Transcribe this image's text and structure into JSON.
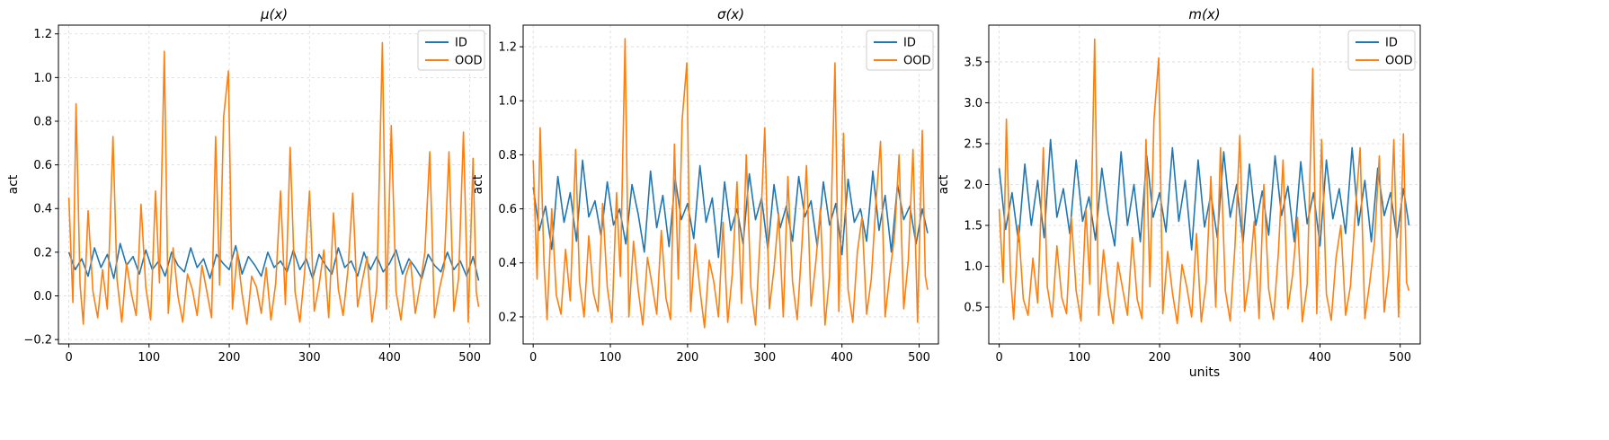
{
  "colors": {
    "ID": "#1f77b4",
    "OOD": "#ff7f0e",
    "grid": "#d9d9d9"
  },
  "chart_data": [
    {
      "type": "line",
      "title": "μ(x)",
      "xlabel": "",
      "ylabel": "act",
      "xlim": [
        -13,
        525
      ],
      "ylim": [
        -0.22,
        1.24
      ],
      "xticks": [
        0,
        100,
        200,
        300,
        400,
        500
      ],
      "xtick_labels": [
        "0",
        "100",
        "200",
        "300",
        "400",
        "500"
      ],
      "yticks": [
        -0.2,
        0.0,
        0.2,
        0.4,
        0.6,
        0.8,
        1.0,
        1.2
      ],
      "ytick_labels": [
        "−0.2",
        "0.0",
        "0.2",
        "0.4",
        "0.6",
        "0.8",
        "1.0",
        "1.2"
      ],
      "grid": true,
      "legend_position": "top-right",
      "series": [
        {
          "name": "ID",
          "color": "#1f77b4",
          "x": [
            0,
            8,
            16,
            24,
            32,
            40,
            48,
            56,
            64,
            72,
            80,
            88,
            96,
            104,
            112,
            120,
            128,
            136,
            144,
            152,
            160,
            168,
            176,
            184,
            192,
            200,
            208,
            216,
            224,
            232,
            240,
            248,
            256,
            264,
            272,
            280,
            288,
            296,
            304,
            312,
            320,
            328,
            336,
            344,
            352,
            360,
            368,
            376,
            384,
            392,
            400,
            408,
            416,
            424,
            432,
            440,
            448,
            456,
            464,
            472,
            480,
            488,
            496,
            504,
            511
          ],
          "y": [
            0.2,
            0.12,
            0.17,
            0.09,
            0.22,
            0.13,
            0.19,
            0.08,
            0.24,
            0.14,
            0.18,
            0.1,
            0.21,
            0.12,
            0.16,
            0.09,
            0.2,
            0.14,
            0.11,
            0.22,
            0.13,
            0.17,
            0.08,
            0.19,
            0.15,
            0.12,
            0.23,
            0.1,
            0.18,
            0.14,
            0.09,
            0.2,
            0.13,
            0.16,
            0.11,
            0.21,
            0.12,
            0.17,
            0.08,
            0.19,
            0.14,
            0.1,
            0.22,
            0.13,
            0.16,
            0.09,
            0.2,
            0.12,
            0.18,
            0.11,
            0.15,
            0.21,
            0.1,
            0.17,
            0.13,
            0.08,
            0.19,
            0.14,
            0.11,
            0.2,
            0.12,
            0.16,
            0.09,
            0.18,
            0.07
          ]
        },
        {
          "name": "OOD",
          "color": "#ff7f0e",
          "x": [
            0,
            5,
            9,
            14,
            18,
            24,
            30,
            36,
            42,
            48,
            55,
            60,
            66,
            72,
            78,
            84,
            90,
            96,
            102,
            108,
            113,
            119,
            124,
            130,
            136,
            142,
            148,
            154,
            160,
            166,
            172,
            178,
            183,
            188,
            193,
            199,
            204,
            210,
            216,
            222,
            228,
            234,
            240,
            246,
            252,
            258,
            264,
            270,
            276,
            282,
            288,
            294,
            300,
            306,
            312,
            318,
            324,
            330,
            336,
            342,
            348,
            354,
            360,
            366,
            372,
            378,
            384,
            391,
            396,
            402,
            408,
            414,
            420,
            426,
            432,
            438,
            444,
            450,
            456,
            462,
            468,
            474,
            480,
            486,
            492,
            498,
            504,
            508,
            511
          ],
          "y": [
            0.45,
            -0.03,
            0.88,
            0.05,
            -0.13,
            0.39,
            0.02,
            -0.1,
            0.12,
            -0.06,
            0.73,
            0.08,
            -0.12,
            0.15,
            0.01,
            -0.09,
            0.42,
            0.04,
            -0.11,
            0.48,
            0.06,
            1.12,
            -0.08,
            0.22,
            0.0,
            -0.12,
            0.1,
            0.03,
            -0.09,
            0.14,
            0.02,
            -0.1,
            0.73,
            0.05,
            0.82,
            1.03,
            -0.06,
            0.2,
            0.01,
            -0.13,
            0.09,
            0.04,
            -0.08,
            0.13,
            -0.11,
            0.06,
            0.48,
            -0.04,
            0.68,
            0.02,
            -0.12,
            0.11,
            0.48,
            -0.07,
            0.05,
            0.21,
            -0.1,
            0.38,
            0.03,
            -0.09,
            0.12,
            0.47,
            -0.05,
            0.07,
            0.18,
            -0.12,
            0.04,
            1.16,
            -0.06,
            0.78,
            0.02,
            -0.11,
            0.09,
            0.16,
            -0.08,
            0.05,
            0.2,
            0.66,
            -0.1,
            0.03,
            0.13,
            0.66,
            -0.07,
            0.08,
            0.75,
            -0.12,
            0.63,
            0.02,
            -0.05
          ]
        }
      ]
    },
    {
      "type": "line",
      "title": "σ(x)",
      "xlabel": "",
      "ylabel": "act",
      "xlim": [
        -13,
        525
      ],
      "ylim": [
        0.1,
        1.28
      ],
      "xticks": [
        0,
        100,
        200,
        300,
        400,
        500
      ],
      "xtick_labels": [
        "0",
        "100",
        "200",
        "300",
        "400",
        "500"
      ],
      "yticks": [
        0.2,
        0.4,
        0.6,
        0.8,
        1.0,
        1.2
      ],
      "ytick_labels": [
        "0.2",
        "0.4",
        "0.6",
        "0.8",
        "1.0",
        "1.2"
      ],
      "grid": true,
      "legend_position": "top-right",
      "series": [
        {
          "name": "ID",
          "color": "#1f77b4",
          "x": [
            0,
            8,
            16,
            24,
            32,
            40,
            48,
            56,
            64,
            72,
            80,
            88,
            96,
            104,
            112,
            120,
            128,
            136,
            144,
            152,
            160,
            168,
            176,
            184,
            192,
            200,
            208,
            216,
            224,
            232,
            240,
            248,
            256,
            264,
            272,
            280,
            288,
            296,
            304,
            312,
            320,
            328,
            336,
            344,
            352,
            360,
            368,
            376,
            384,
            392,
            400,
            408,
            416,
            424,
            432,
            440,
            448,
            456,
            464,
            472,
            480,
            488,
            496,
            504,
            511
          ],
          "y": [
            0.68,
            0.52,
            0.61,
            0.45,
            0.72,
            0.55,
            0.66,
            0.48,
            0.78,
            0.57,
            0.63,
            0.5,
            0.7,
            0.54,
            0.6,
            0.47,
            0.69,
            0.58,
            0.44,
            0.74,
            0.53,
            0.65,
            0.46,
            0.71,
            0.56,
            0.62,
            0.49,
            0.76,
            0.55,
            0.64,
            0.42,
            0.7,
            0.52,
            0.6,
            0.47,
            0.73,
            0.56,
            0.64,
            0.45,
            0.69,
            0.53,
            0.61,
            0.48,
            0.72,
            0.57,
            0.63,
            0.46,
            0.7,
            0.54,
            0.62,
            0.43,
            0.71,
            0.55,
            0.6,
            0.48,
            0.74,
            0.52,
            0.65,
            0.44,
            0.69,
            0.56,
            0.61,
            0.47,
            0.6,
            0.51
          ]
        },
        {
          "name": "OOD",
          "color": "#ff7f0e",
          "x": [
            0,
            5,
            9,
            14,
            18,
            24,
            30,
            36,
            42,
            48,
            55,
            60,
            66,
            72,
            78,
            84,
            90,
            96,
            102,
            108,
            113,
            119,
            124,
            130,
            136,
            142,
            148,
            154,
            160,
            166,
            172,
            178,
            183,
            188,
            193,
            199,
            204,
            210,
            216,
            222,
            228,
            234,
            240,
            246,
            252,
            258,
            264,
            270,
            276,
            282,
            288,
            294,
            300,
            306,
            312,
            318,
            324,
            330,
            336,
            342,
            348,
            354,
            360,
            366,
            372,
            378,
            384,
            391,
            396,
            402,
            408,
            414,
            420,
            426,
            432,
            438,
            444,
            450,
            456,
            462,
            468,
            474,
            480,
            486,
            492,
            498,
            504,
            508,
            511
          ],
          "y": [
            0.78,
            0.34,
            0.9,
            0.4,
            0.19,
            0.6,
            0.28,
            0.21,
            0.45,
            0.26,
            0.82,
            0.33,
            0.2,
            0.5,
            0.29,
            0.22,
            0.62,
            0.31,
            0.18,
            0.66,
            0.35,
            1.23,
            0.2,
            0.48,
            0.3,
            0.17,
            0.42,
            0.32,
            0.21,
            0.52,
            0.27,
            0.19,
            0.84,
            0.34,
            0.93,
            1.14,
            0.22,
            0.47,
            0.3,
            0.16,
            0.41,
            0.33,
            0.2,
            0.55,
            0.18,
            0.36,
            0.7,
            0.25,
            0.8,
            0.31,
            0.17,
            0.49,
            0.9,
            0.23,
            0.38,
            0.58,
            0.2,
            0.72,
            0.33,
            0.19,
            0.46,
            0.76,
            0.24,
            0.4,
            0.6,
            0.17,
            0.35,
            1.14,
            0.22,
            0.88,
            0.3,
            0.18,
            0.44,
            0.57,
            0.21,
            0.34,
            0.62,
            0.85,
            0.2,
            0.36,
            0.5,
            0.8,
            0.23,
            0.41,
            0.82,
            0.18,
            0.89,
            0.35,
            0.3
          ]
        }
      ]
    },
    {
      "type": "line",
      "title": "m(x)",
      "xlabel": "units",
      "ylabel": "act",
      "xlim": [
        -13,
        525
      ],
      "ylim": [
        0.05,
        3.95
      ],
      "xticks": [
        0,
        100,
        200,
        300,
        400,
        500
      ],
      "xtick_labels": [
        "0",
        "100",
        "200",
        "300",
        "400",
        "500"
      ],
      "yticks": [
        0.5,
        1.0,
        1.5,
        2.0,
        2.5,
        3.0,
        3.5
      ],
      "ytick_labels": [
        "0.5",
        "1.0",
        "1.5",
        "2.0",
        "2.5",
        "3.0",
        "3.5"
      ],
      "grid": true,
      "legend_position": "top-right",
      "series": [
        {
          "name": "ID",
          "color": "#1f77b4",
          "x": [
            0,
            8,
            16,
            24,
            32,
            40,
            48,
            56,
            64,
            72,
            80,
            88,
            96,
            104,
            112,
            120,
            128,
            136,
            144,
            152,
            160,
            168,
            176,
            184,
            192,
            200,
            208,
            216,
            224,
            232,
            240,
            248,
            256,
            264,
            272,
            280,
            288,
            296,
            304,
            312,
            320,
            328,
            336,
            344,
            352,
            360,
            368,
            376,
            384,
            392,
            400,
            408,
            416,
            424,
            432,
            440,
            448,
            456,
            464,
            472,
            480,
            488,
            496,
            504,
            511
          ],
          "y": [
            2.2,
            1.45,
            1.9,
            1.3,
            2.25,
            1.5,
            2.05,
            1.35,
            2.55,
            1.6,
            1.95,
            1.4,
            2.3,
            1.55,
            1.85,
            1.32,
            2.2,
            1.65,
            1.25,
            2.4,
            1.5,
            2.0,
            1.3,
            2.35,
            1.6,
            1.9,
            1.42,
            2.45,
            1.55,
            2.05,
            1.2,
            2.3,
            1.48,
            1.88,
            1.35,
            2.4,
            1.6,
            2.0,
            1.28,
            2.25,
            1.5,
            1.92,
            1.38,
            2.35,
            1.62,
            1.98,
            1.3,
            2.28,
            1.52,
            1.9,
            1.25,
            2.3,
            1.58,
            1.95,
            1.4,
            2.45,
            1.5,
            2.05,
            1.3,
            2.2,
            1.62,
            1.9,
            1.35,
            1.95,
            1.5
          ]
        },
        {
          "name": "OOD",
          "color": "#ff7f0e",
          "x": [
            0,
            5,
            9,
            14,
            18,
            24,
            30,
            36,
            42,
            48,
            55,
            60,
            66,
            72,
            78,
            84,
            90,
            96,
            102,
            108,
            113,
            119,
            124,
            130,
            136,
            142,
            148,
            154,
            160,
            166,
            172,
            178,
            183,
            188,
            193,
            199,
            204,
            210,
            216,
            222,
            228,
            234,
            240,
            246,
            252,
            258,
            264,
            270,
            276,
            282,
            288,
            294,
            300,
            306,
            312,
            318,
            324,
            330,
            336,
            342,
            348,
            354,
            360,
            366,
            372,
            378,
            384,
            391,
            396,
            402,
            408,
            414,
            420,
            426,
            432,
            438,
            444,
            450,
            456,
            462,
            468,
            474,
            480,
            486,
            492,
            498,
            504,
            508,
            511
          ],
          "y": [
            1.7,
            0.8,
            2.8,
            0.9,
            0.35,
            1.5,
            0.6,
            0.4,
            1.1,
            0.55,
            2.45,
            0.75,
            0.38,
            1.25,
            0.62,
            0.42,
            1.6,
            0.7,
            0.33,
            1.7,
            0.78,
            3.78,
            0.4,
            1.2,
            0.66,
            0.3,
            1.05,
            0.72,
            0.4,
            1.35,
            0.6,
            0.36,
            2.55,
            0.75,
            2.8,
            3.55,
            0.42,
            1.18,
            0.68,
            0.3,
            1.02,
            0.74,
            0.38,
            1.4,
            0.32,
            0.8,
            2.1,
            0.5,
            2.45,
            0.7,
            0.33,
            1.25,
            2.6,
            0.45,
            0.86,
            1.55,
            0.36,
            2.0,
            0.72,
            0.35,
            1.15,
            2.3,
            0.48,
            0.9,
            1.6,
            0.32,
            0.78,
            3.42,
            0.42,
            2.55,
            0.66,
            0.34,
            1.1,
            1.5,
            0.4,
            0.76,
            1.65,
            2.45,
            0.36,
            0.8,
            1.3,
            2.35,
            0.44,
            0.95,
            2.55,
            0.38,
            2.62,
            0.8,
            0.7
          ]
        }
      ]
    }
  ]
}
